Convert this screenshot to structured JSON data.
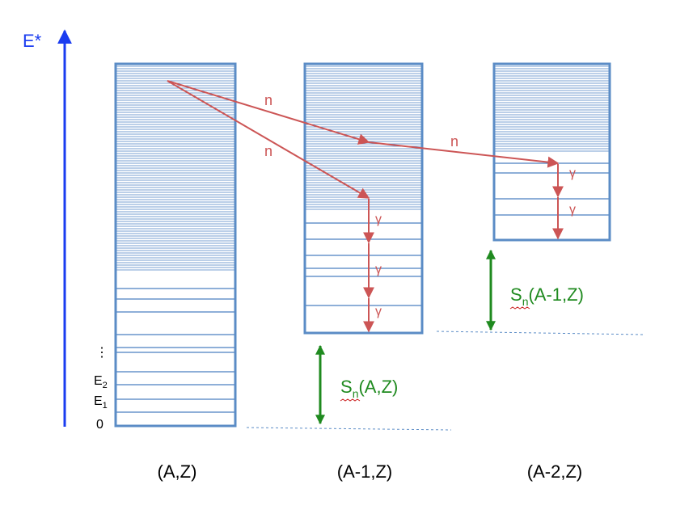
{
  "axis": {
    "label": "E*",
    "color": "#1a3cf0"
  },
  "nuclei": [
    {
      "label": "(A,Z)"
    },
    {
      "label": "(A-1,Z)"
    },
    {
      "label": "(A-2,Z)"
    }
  ],
  "level_labels": {
    "dots": "⋮",
    "e2_main": "E",
    "e2_sub": "2",
    "e1_main": "E",
    "e1_sub": "1",
    "zero": "0"
  },
  "transitions": {
    "neutron": "n",
    "gamma": "γ"
  },
  "separation": [
    {
      "main": "S",
      "sub": "n",
      "rest": "(A,Z)"
    },
    {
      "main": "S",
      "sub": "n",
      "rest": "(A-1,Z)"
    }
  ],
  "colors": {
    "box": "#5b8cc6",
    "level": "#4a7fc0",
    "arrow": "#cc5555",
    "separation": "#1f8a1f",
    "label": "#000000"
  }
}
